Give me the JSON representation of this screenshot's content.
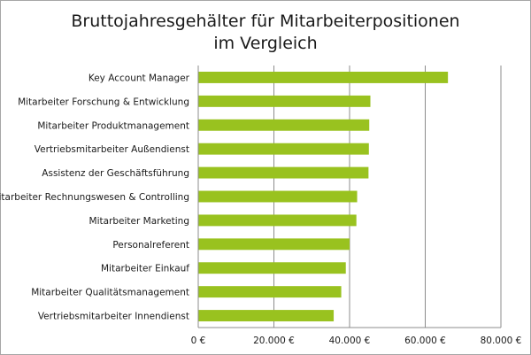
{
  "chart_data": {
    "type": "bar",
    "orientation": "horizontal",
    "title_lines": [
      "Bruttojahresgehälter für Mitarbeiterpositionen",
      "im Vergleich"
    ],
    "xlabel": "",
    "ylabel": "",
    "categories": [
      "Key Account Manager",
      "Mitarbeiter Forschung & Entwicklung",
      "Mitarbeiter Produktmanagement",
      "Vertriebsmitarbeiter Außendienst",
      "Assistenz der Geschäftsführung",
      "Mitarbeiter Rechnungswesen & Controlling",
      "Mitarbeiter Marketing",
      "Personalreferent",
      "Mitarbeiter Einkauf",
      "Mitarbeiter Qualitätsmanagement",
      "Vertriebsmitarbeiter Innendienst"
    ],
    "values": [
      66000,
      45500,
      45200,
      45100,
      45000,
      42000,
      41800,
      40000,
      39000,
      37800,
      35800
    ],
    "xlim": [
      0,
      80000
    ],
    "ticks": [
      0,
      20000,
      40000,
      60000,
      80000
    ],
    "tick_labels": [
      "0 €",
      "20.000 €",
      "40.000 €",
      "60.000 €",
      "80.000 €"
    ],
    "bar_color": "#99c21f",
    "grid": true,
    "legend": false
  }
}
